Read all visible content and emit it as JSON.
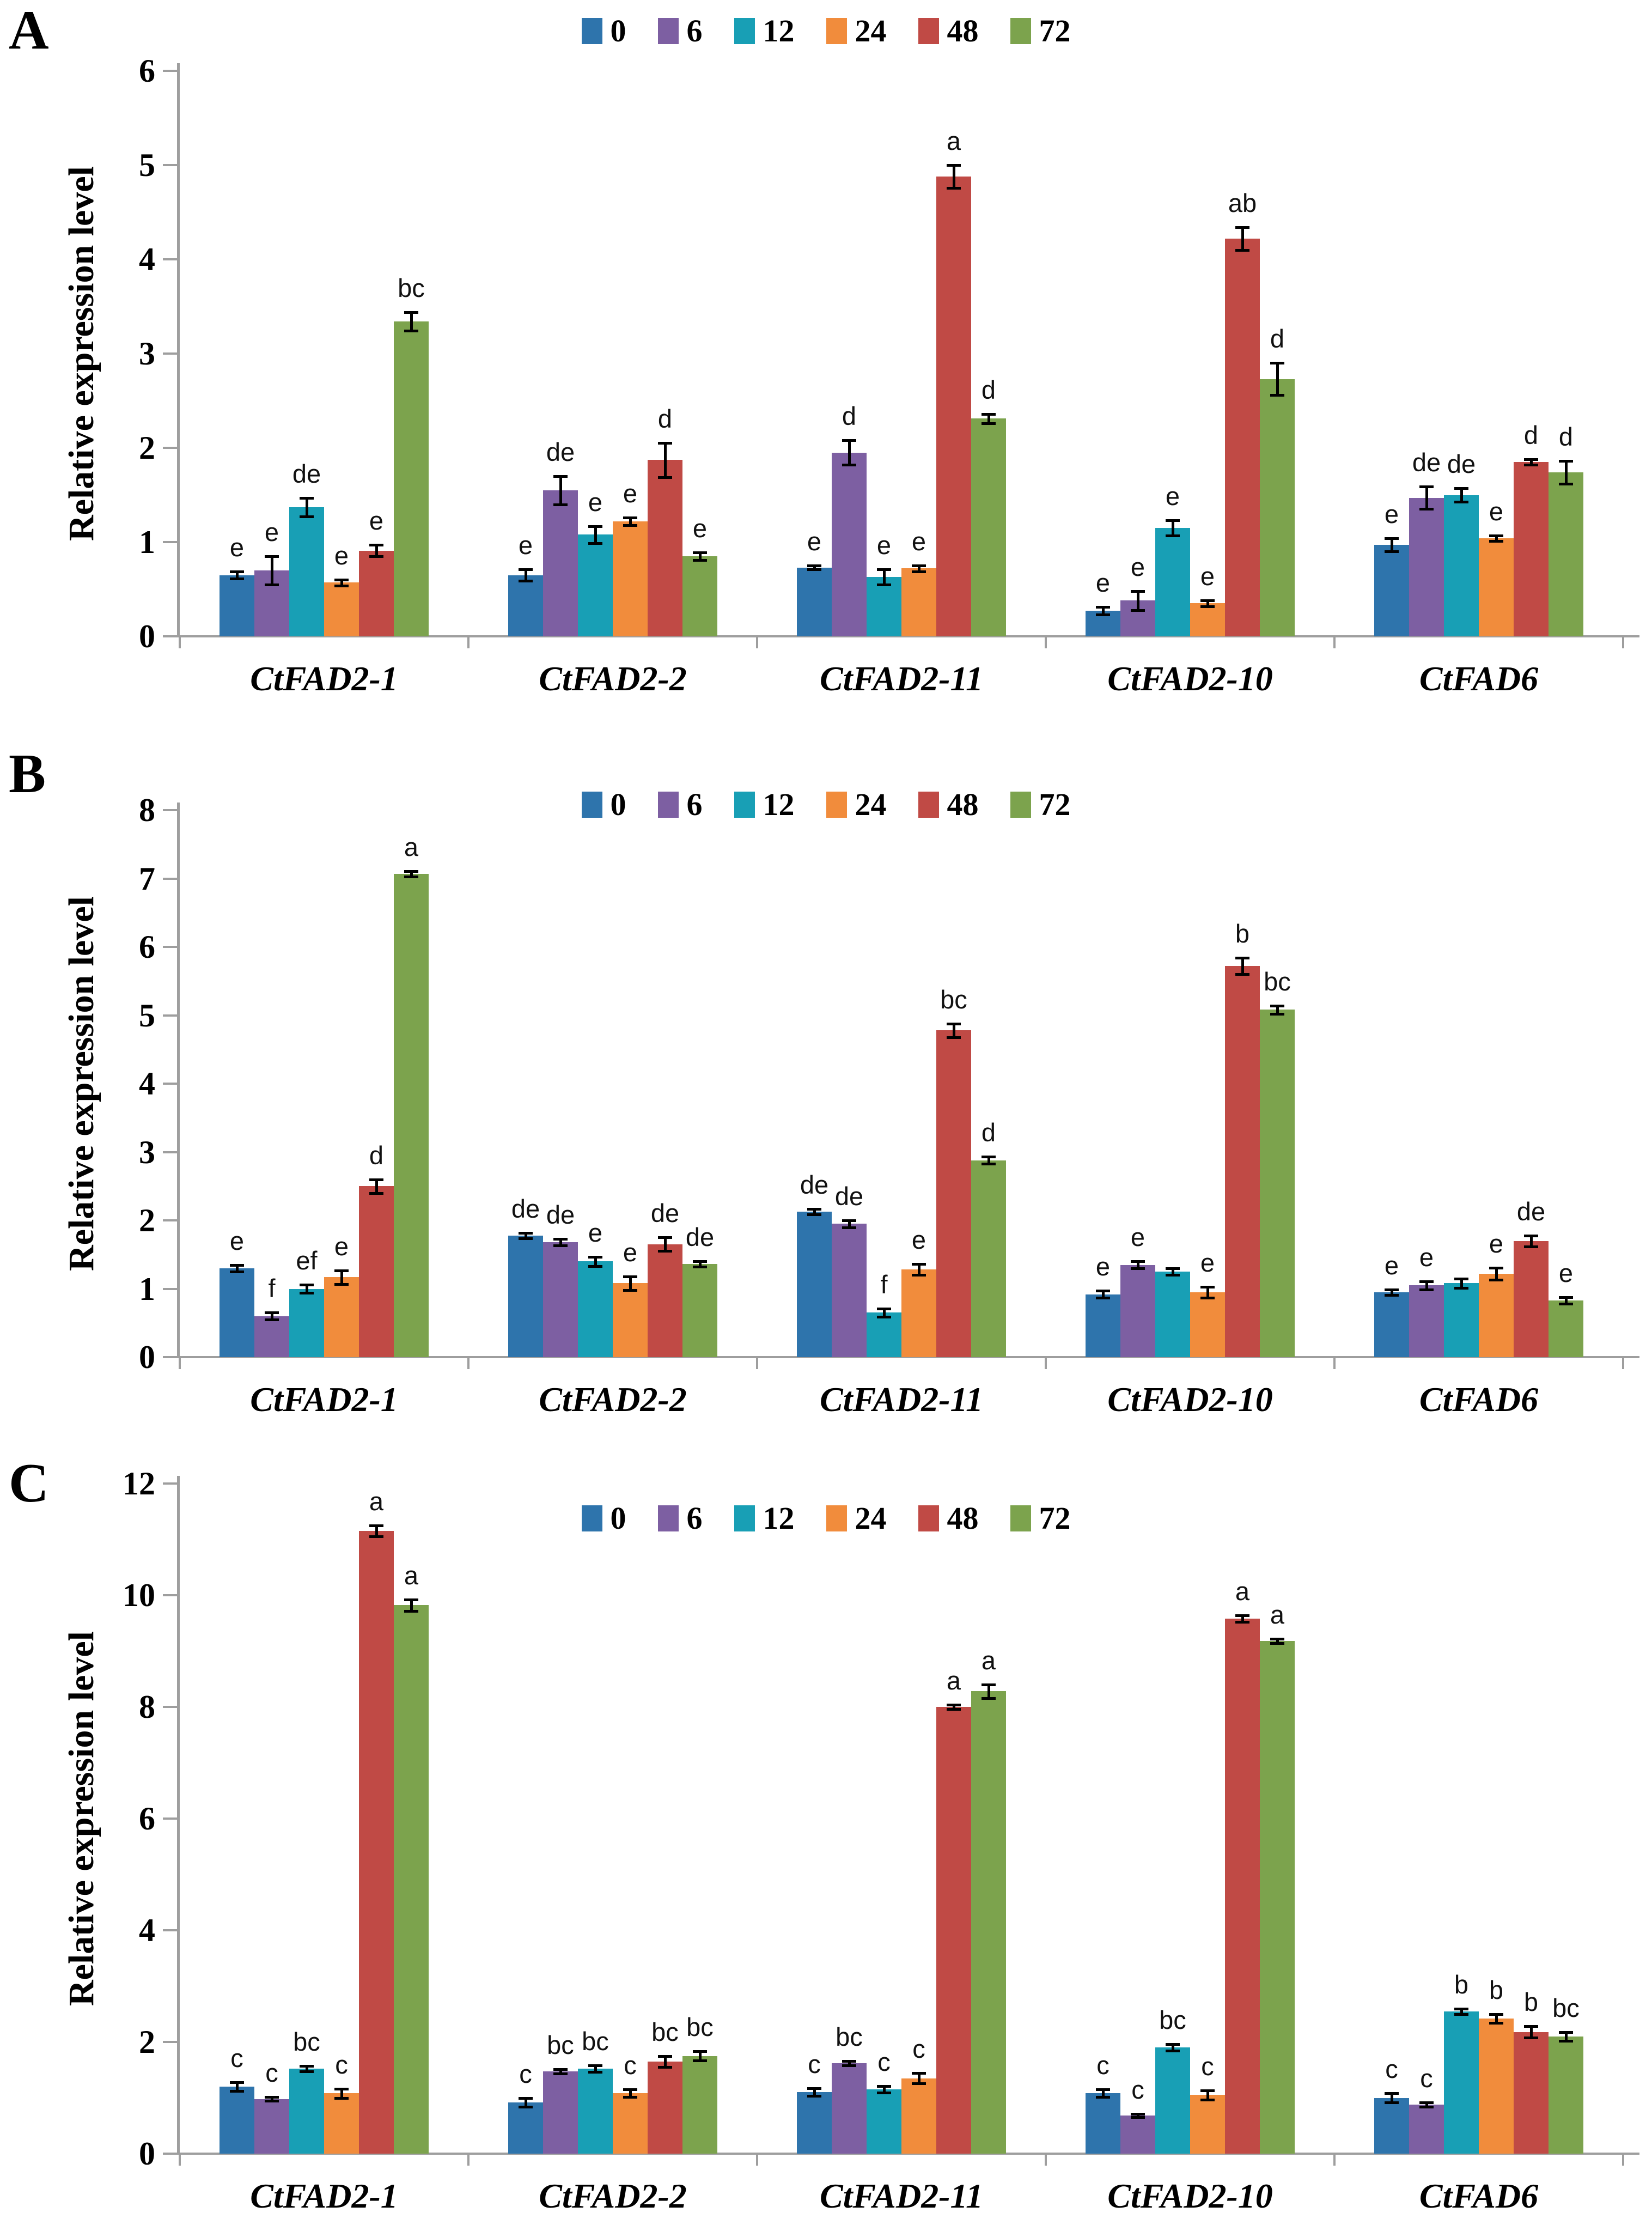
{
  "legend": {
    "labels": [
      "0",
      "6",
      "12",
      "24",
      "48",
      "72"
    ],
    "colors": [
      "#2E74AC",
      "#7D5FA2",
      "#189FB5",
      "#F18C3C",
      "#C04A45",
      "#7CA34D"
    ]
  },
  "axis_color": "#9e9e9e",
  "chart_data": [
    {
      "panel": "A",
      "type": "bar",
      "title": "",
      "ylabel": "Relative expression level",
      "ylim": [
        0,
        6
      ],
      "ytick_step": 1,
      "grid": false,
      "legend_position": "top-center",
      "categories": [
        "CtFAD2-1",
        "CtFAD2-2",
        "CtFAD2-11",
        "CtFAD2-10",
        "CtFAD6"
      ],
      "series": [
        {
          "name": "0",
          "values": [
            0.65,
            0.65,
            0.73,
            0.27,
            0.97
          ],
          "errors": [
            0.04,
            0.06,
            0.02,
            0.04,
            0.07
          ],
          "letters": [
            "e",
            "e",
            "e",
            "e",
            "e"
          ]
        },
        {
          "name": "6",
          "values": [
            0.7,
            1.55,
            1.95,
            0.38,
            1.47
          ],
          "errors": [
            0.15,
            0.15,
            0.13,
            0.1,
            0.12
          ],
          "letters": [
            "e",
            "de",
            "d",
            "e",
            "de"
          ]
        },
        {
          "name": "12",
          "values": [
            1.37,
            1.08,
            0.63,
            1.15,
            1.5
          ],
          "errors": [
            0.1,
            0.09,
            0.08,
            0.08,
            0.07
          ],
          "letters": [
            "de",
            "e",
            "e",
            "e",
            "de"
          ]
        },
        {
          "name": "24",
          "values": [
            0.57,
            1.22,
            0.72,
            0.35,
            1.04
          ],
          "errors": [
            0.03,
            0.04,
            0.03,
            0.03,
            0.03
          ],
          "letters": [
            "e",
            "e",
            "e",
            "e",
            "e"
          ]
        },
        {
          "name": "48",
          "values": [
            0.91,
            1.87,
            4.88,
            4.22,
            1.85
          ],
          "errors": [
            0.06,
            0.18,
            0.12,
            0.12,
            0.03
          ],
          "letters": [
            "e",
            "d",
            "a",
            "ab",
            "d"
          ]
        },
        {
          "name": "72",
          "values": [
            3.34,
            0.85,
            2.31,
            2.73,
            1.74
          ],
          "errors": [
            0.1,
            0.04,
            0.05,
            0.17,
            0.12
          ],
          "letters": [
            "bc",
            "e",
            "d",
            "d",
            "d"
          ]
        }
      ]
    },
    {
      "panel": "B",
      "type": "bar",
      "title": "",
      "ylabel": "Relative expression level",
      "ylim": [
        0,
        8
      ],
      "ytick_step": 1,
      "grid": false,
      "legend_position": "top-center",
      "categories": [
        "CtFAD2-1",
        "CtFAD2-2",
        "CtFAD2-11",
        "CtFAD2-10",
        "CtFAD6"
      ],
      "series": [
        {
          "name": "0",
          "values": [
            1.3,
            1.78,
            2.13,
            0.92,
            0.95
          ],
          "errors": [
            0.05,
            0.04,
            0.04,
            0.05,
            0.04
          ],
          "letters": [
            "e",
            "de",
            "de",
            "e",
            "e"
          ]
        },
        {
          "name": "6",
          "values": [
            0.6,
            1.68,
            1.95,
            1.35,
            1.05
          ],
          "errors": [
            0.05,
            0.05,
            0.05,
            0.05,
            0.06
          ],
          "letters": [
            "f",
            "de",
            "de",
            "e",
            "e"
          ]
        },
        {
          "name": "12",
          "values": [
            1.0,
            1.4,
            0.65,
            1.25,
            1.08
          ],
          "errors": [
            0.06,
            0.07,
            0.06,
            0.05,
            0.07
          ],
          "letters": [
            "ef",
            "e",
            "f",
            "",
            ""
          ]
        },
        {
          "name": "24",
          "values": [
            1.17,
            1.08,
            1.28,
            0.95,
            1.22
          ],
          "errors": [
            0.1,
            0.1,
            0.08,
            0.08,
            0.09
          ],
          "letters": [
            "e",
            "e",
            "e",
            "e",
            "e"
          ]
        },
        {
          "name": "48",
          "values": [
            2.5,
            1.65,
            4.78,
            5.72,
            1.7
          ],
          "errors": [
            0.1,
            0.1,
            0.1,
            0.12,
            0.08
          ],
          "letters": [
            "d",
            "de",
            "bc",
            "b",
            "de"
          ]
        },
        {
          "name": "72",
          "values": [
            7.07,
            1.36,
            2.88,
            5.08,
            0.83
          ],
          "errors": [
            0.04,
            0.04,
            0.05,
            0.06,
            0.05
          ],
          "letters": [
            "a",
            "de",
            "d",
            "bc",
            "e"
          ]
        }
      ]
    },
    {
      "panel": "C",
      "type": "bar",
      "title": "",
      "ylabel": "Relative expression level",
      "ylim": [
        0,
        12
      ],
      "ytick_step": 2,
      "grid": false,
      "legend_position": "top-center",
      "categories": [
        "CtFAD2-1",
        "CtFAD2-2",
        "CtFAD2-11",
        "CtFAD2-10",
        "CtFAD6"
      ],
      "series": [
        {
          "name": "0",
          "values": [
            1.2,
            0.92,
            1.1,
            1.08,
            1.0
          ],
          "errors": [
            0.08,
            0.08,
            0.07,
            0.07,
            0.08
          ],
          "letters": [
            "c",
            "c",
            "c",
            "c",
            "c"
          ]
        },
        {
          "name": "6",
          "values": [
            0.98,
            1.47,
            1.62,
            0.68,
            0.88
          ],
          "errors": [
            0.03,
            0.04,
            0.04,
            0.03,
            0.04
          ],
          "letters": [
            "c",
            "bc",
            "bc",
            "c",
            "c"
          ]
        },
        {
          "name": "12",
          "values": [
            1.52,
            1.52,
            1.15,
            1.9,
            2.55
          ],
          "errors": [
            0.05,
            0.06,
            0.06,
            0.06,
            0.05
          ],
          "letters": [
            "bc",
            "bc",
            "c",
            "bc",
            "b"
          ]
        },
        {
          "name": "24",
          "values": [
            1.08,
            1.08,
            1.35,
            1.05,
            2.42
          ],
          "errors": [
            0.08,
            0.07,
            0.09,
            0.08,
            0.08
          ],
          "letters": [
            "c",
            "c",
            "c",
            "c",
            "b"
          ]
        },
        {
          "name": "48",
          "values": [
            11.15,
            1.65,
            8.0,
            9.58,
            2.18
          ],
          "errors": [
            0.1,
            0.1,
            0.04,
            0.06,
            0.1
          ],
          "letters": [
            "a",
            "bc",
            "a",
            "a",
            "b"
          ]
        },
        {
          "name": "72",
          "values": [
            9.82,
            1.75,
            8.28,
            9.18,
            2.1
          ],
          "errors": [
            0.1,
            0.08,
            0.12,
            0.04,
            0.08
          ],
          "letters": [
            "a",
            "bc",
            "a",
            "a",
            "bc"
          ]
        }
      ]
    }
  ]
}
